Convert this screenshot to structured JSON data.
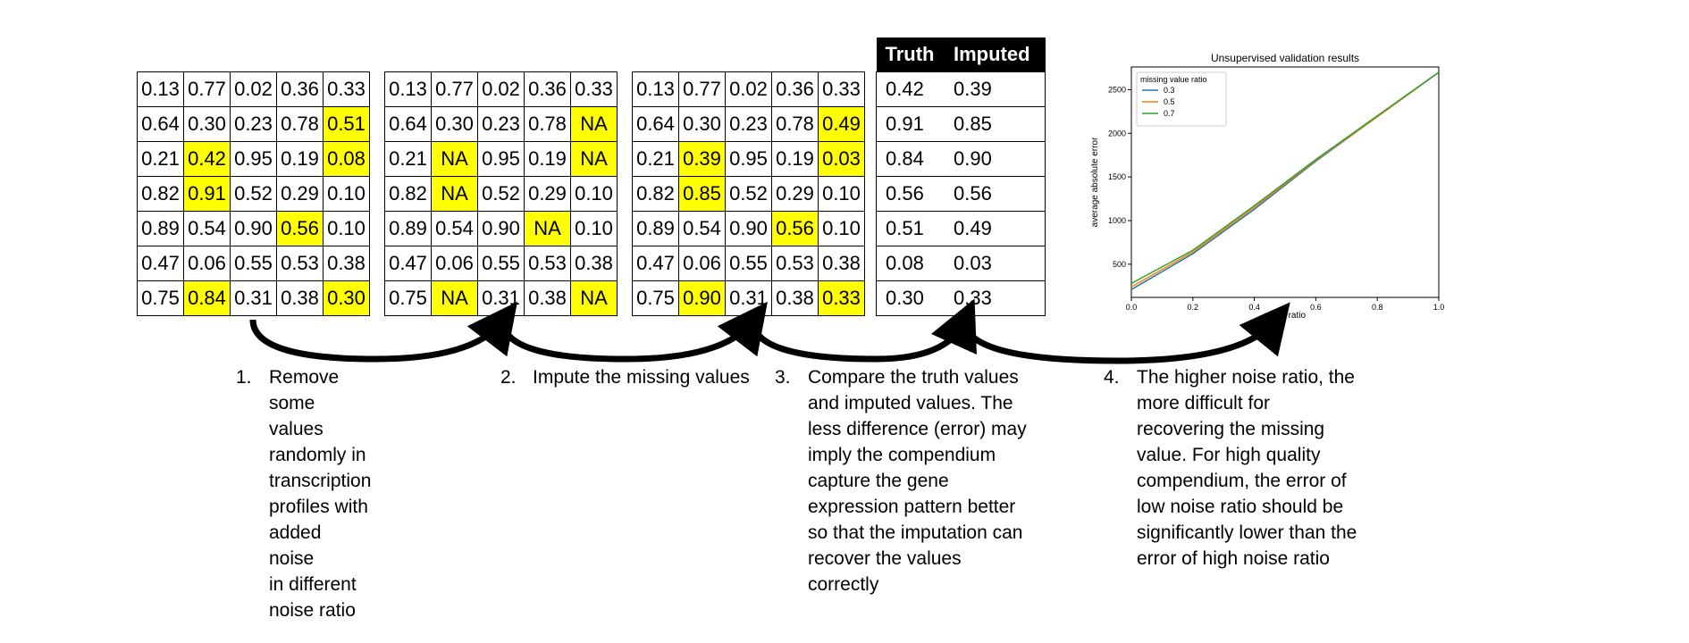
{
  "tables": {
    "original": [
      [
        "0.13",
        "0.77",
        "0.02",
        "0.36",
        "0.33"
      ],
      [
        "0.64",
        "0.30",
        "0.23",
        "0.78",
        "0.51"
      ],
      [
        "0.21",
        "0.42",
        "0.95",
        "0.19",
        "0.08"
      ],
      [
        "0.82",
        "0.91",
        "0.52",
        "0.29",
        "0.10"
      ],
      [
        "0.89",
        "0.54",
        "0.90",
        "0.56",
        "0.10"
      ],
      [
        "0.47",
        "0.06",
        "0.55",
        "0.53",
        "0.38"
      ],
      [
        "0.75",
        "0.84",
        "0.31",
        "0.38",
        "0.30"
      ]
    ],
    "masked": [
      [
        "0.13",
        "0.77",
        "0.02",
        "0.36",
        "0.33"
      ],
      [
        "0.64",
        "0.30",
        "0.23",
        "0.78",
        "NA"
      ],
      [
        "0.21",
        "NA",
        "0.95",
        "0.19",
        "NA"
      ],
      [
        "0.82",
        "NA",
        "0.52",
        "0.29",
        "0.10"
      ],
      [
        "0.89",
        "0.54",
        "0.90",
        "NA",
        "0.10"
      ],
      [
        "0.47",
        "0.06",
        "0.55",
        "0.53",
        "0.38"
      ],
      [
        "0.75",
        "NA",
        "0.31",
        "0.38",
        "NA"
      ]
    ],
    "imputed": [
      [
        "0.13",
        "0.77",
        "0.02",
        "0.36",
        "0.33"
      ],
      [
        "0.64",
        "0.30",
        "0.23",
        "0.78",
        "0.49"
      ],
      [
        "0.21",
        "0.39",
        "0.95",
        "0.19",
        "0.03"
      ],
      [
        "0.82",
        "0.85",
        "0.52",
        "0.29",
        "0.10"
      ],
      [
        "0.89",
        "0.54",
        "0.90",
        "0.56",
        "0.10"
      ],
      [
        "0.47",
        "0.06",
        "0.55",
        "0.53",
        "0.38"
      ],
      [
        "0.75",
        "0.90",
        "0.31",
        "0.38",
        "0.33"
      ]
    ],
    "highlighted_cells": [
      [
        1,
        4
      ],
      [
        2,
        1
      ],
      [
        2,
        4
      ],
      [
        3,
        1
      ],
      [
        4,
        3
      ],
      [
        6,
        1
      ],
      [
        6,
        4
      ]
    ]
  },
  "comparison": {
    "headers": [
      "Truth",
      "Imputed"
    ],
    "rows": [
      [
        "0.42",
        "0.39"
      ],
      [
        "0.91",
        "0.85"
      ],
      [
        "0.84",
        "0.90"
      ],
      [
        "0.56",
        "0.56"
      ],
      [
        "0.51",
        "0.49"
      ],
      [
        "0.08",
        "0.03"
      ],
      [
        "0.30",
        "0.33"
      ]
    ]
  },
  "steps": [
    {
      "num": "1.",
      "lines": [
        "Remove some values",
        "randomly in transcription",
        "profiles with added noise",
        "in different noise ratio"
      ]
    },
    {
      "num": "2.",
      "lines": [
        "Impute the missing values"
      ]
    },
    {
      "num": "3.",
      "lines": [
        "Compare the truth values",
        "and imputed values. The",
        "less difference (error) may",
        "imply the compendium",
        "capture the gene",
        "expression pattern better",
        "so that the imputation can",
        "recover the values",
        "correctly"
      ]
    },
    {
      "num": "4.",
      "lines": [
        "The higher noise ratio, the",
        "more difficult for",
        "recovering the missing",
        "value. For high quality",
        "compendium, the error of",
        "low noise ratio should be",
        "significantly lower than the",
        "error of high noise ratio"
      ]
    }
  ],
  "colors": {
    "highlight": "#ffff00",
    "header_bg": "#000000",
    "series": [
      "#1f77b4",
      "#ff7f0e",
      "#2ca02c"
    ]
  },
  "chart_data": {
    "type": "line",
    "title": "Unsupervised validation results",
    "xlabel": "noise ratio",
    "ylabel": "average absolute error",
    "xlim": [
      0.0,
      1.0
    ],
    "ylim": [
      120,
      2760
    ],
    "xticks": [
      "0.0",
      "0.2",
      "0.4",
      "0.6",
      "0.8",
      "1.0"
    ],
    "yticks": [
      "500",
      "1000",
      "1500",
      "2000",
      "2500"
    ],
    "legend_title": "missing value ratio",
    "legend_position": "top-left",
    "grid": false,
    "x": [
      0.0,
      0.2,
      0.4,
      0.6,
      0.8,
      1.0
    ],
    "series": [
      {
        "name": "0.3",
        "values": [
          210,
          620,
          1130,
          1680,
          2190,
          2700
        ]
      },
      {
        "name": "0.5",
        "values": [
          240,
          640,
          1150,
          1690,
          2190,
          2700
        ]
      },
      {
        "name": "0.7",
        "values": [
          280,
          660,
          1170,
          1700,
          2200,
          2700
        ]
      }
    ]
  }
}
